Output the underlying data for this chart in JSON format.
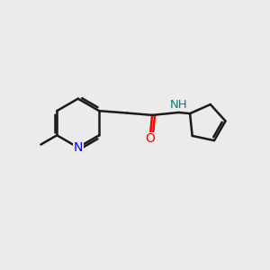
{
  "background_color": "#ebebeb",
  "bond_color": "#1a1a1a",
  "nitrogen_color": "#0000ff",
  "oxygen_color": "#ff0000",
  "nh_nitrogen_color": "#008080",
  "line_width": 1.8,
  "figsize": [
    3.0,
    3.0
  ],
  "dpi": 100,
  "xlim": [
    0,
    10
  ],
  "ylim": [
    0,
    10
  ]
}
